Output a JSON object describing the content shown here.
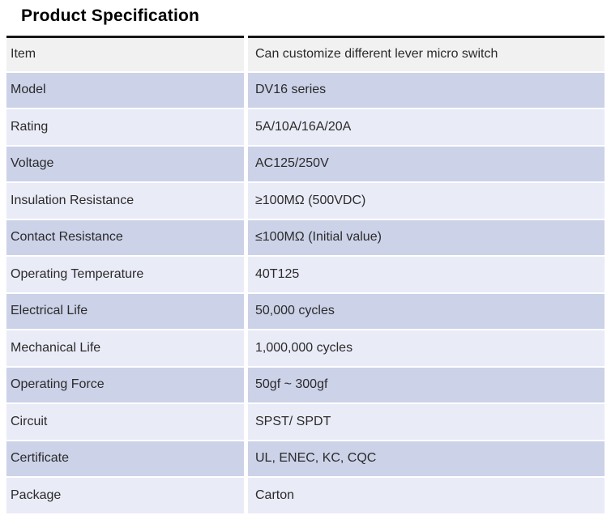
{
  "page": {
    "title": "Product Specification"
  },
  "table": {
    "rows": [
      {
        "label": "Item",
        "value": "Can customize different lever micro switch"
      },
      {
        "label": "Model",
        "value": "DV16 series"
      },
      {
        "label": "Rating",
        "value": "5A/10A/16A/20A"
      },
      {
        "label": "Voltage",
        "value": "AC125/250V"
      },
      {
        "label": "Insulation Resistance",
        "value": "≥100MΩ (500VDC)"
      },
      {
        "label": "Contact Resistance",
        "value": "≤100MΩ (Initial value)"
      },
      {
        "label": "Operating Temperature",
        "value": "40T125"
      },
      {
        "label": "Electrical Life",
        "value": "50,000 cycles"
      },
      {
        "label": "Mechanical Life",
        "value": "1,000,000 cycles"
      },
      {
        "label": "Operating Force",
        "value": "50gf ~ 300gf"
      },
      {
        "label": "Circuit",
        "value": "SPST/ SPDT"
      },
      {
        "label": "Certificate",
        "value": "UL, ENEC, KC, CQC"
      },
      {
        "label": "Package",
        "value": "Carton"
      }
    ],
    "colors": {
      "header_row_bg": "#f1f1f2",
      "row_dark_bg": "#ccd2e8",
      "row_light_bg": "#e9ebf7",
      "top_border": "#161616",
      "text": "#2b2b2b"
    }
  }
}
